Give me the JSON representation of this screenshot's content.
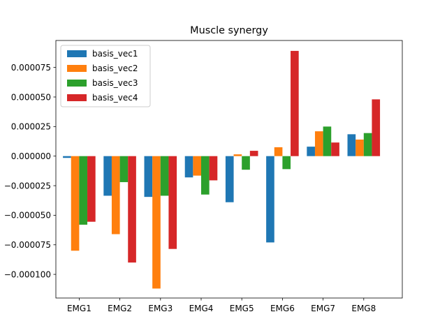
{
  "chart_data": {
    "type": "bar",
    "title": "Muscle synergy",
    "xlabel": "",
    "ylabel": "",
    "categories": [
      "EMG1",
      "EMG2",
      "EMG3",
      "EMG4",
      "EMG5",
      "EMG6",
      "EMG7",
      "EMG8"
    ],
    "series": [
      {
        "name": "basis_vec1",
        "color": "#1f77b4",
        "values": [
          -1.5e-06,
          -3.35e-05,
          -3.45e-05,
          -1.8e-05,
          -3.9e-05,
          -7.3e-05,
          8e-06,
          1.85e-05
        ]
      },
      {
        "name": "basis_vec2",
        "color": "#ff7f0e",
        "values": [
          -8e-05,
          -6.6e-05,
          -0.000112,
          -1.65e-05,
          1.5e-06,
          7.5e-06,
          2.1e-05,
          1.4e-05
        ]
      },
      {
        "name": "basis_vec3",
        "color": "#2ca02c",
        "values": [
          -5.8e-05,
          -2.2e-05,
          -3.35e-05,
          -3.25e-05,
          -1.15e-05,
          -1.1e-05,
          2.5e-05,
          1.95e-05
        ]
      },
      {
        "name": "basis_vec4",
        "color": "#d62728",
        "values": [
          -5.55e-05,
          -9e-05,
          -7.85e-05,
          -2.05e-05,
          4.5e-06,
          8.9e-05,
          1.15e-05,
          4.8e-05
        ]
      }
    ],
    "yticks": [
      -0.0001,
      -7.5e-05,
      -5e-05,
      -2.5e-05,
      0,
      2.5e-05,
      5e-05,
      7.5e-05
    ],
    "ytick_labels": [
      "−0.000100",
      "−0.000075",
      "−0.000050",
      "−0.000025",
      "0.000000",
      "0.000025",
      "0.000050",
      "0.000075"
    ],
    "ylim": [
      -0.00012,
      9.78e-05
    ],
    "grid": false,
    "legend_position": "top-left"
  }
}
